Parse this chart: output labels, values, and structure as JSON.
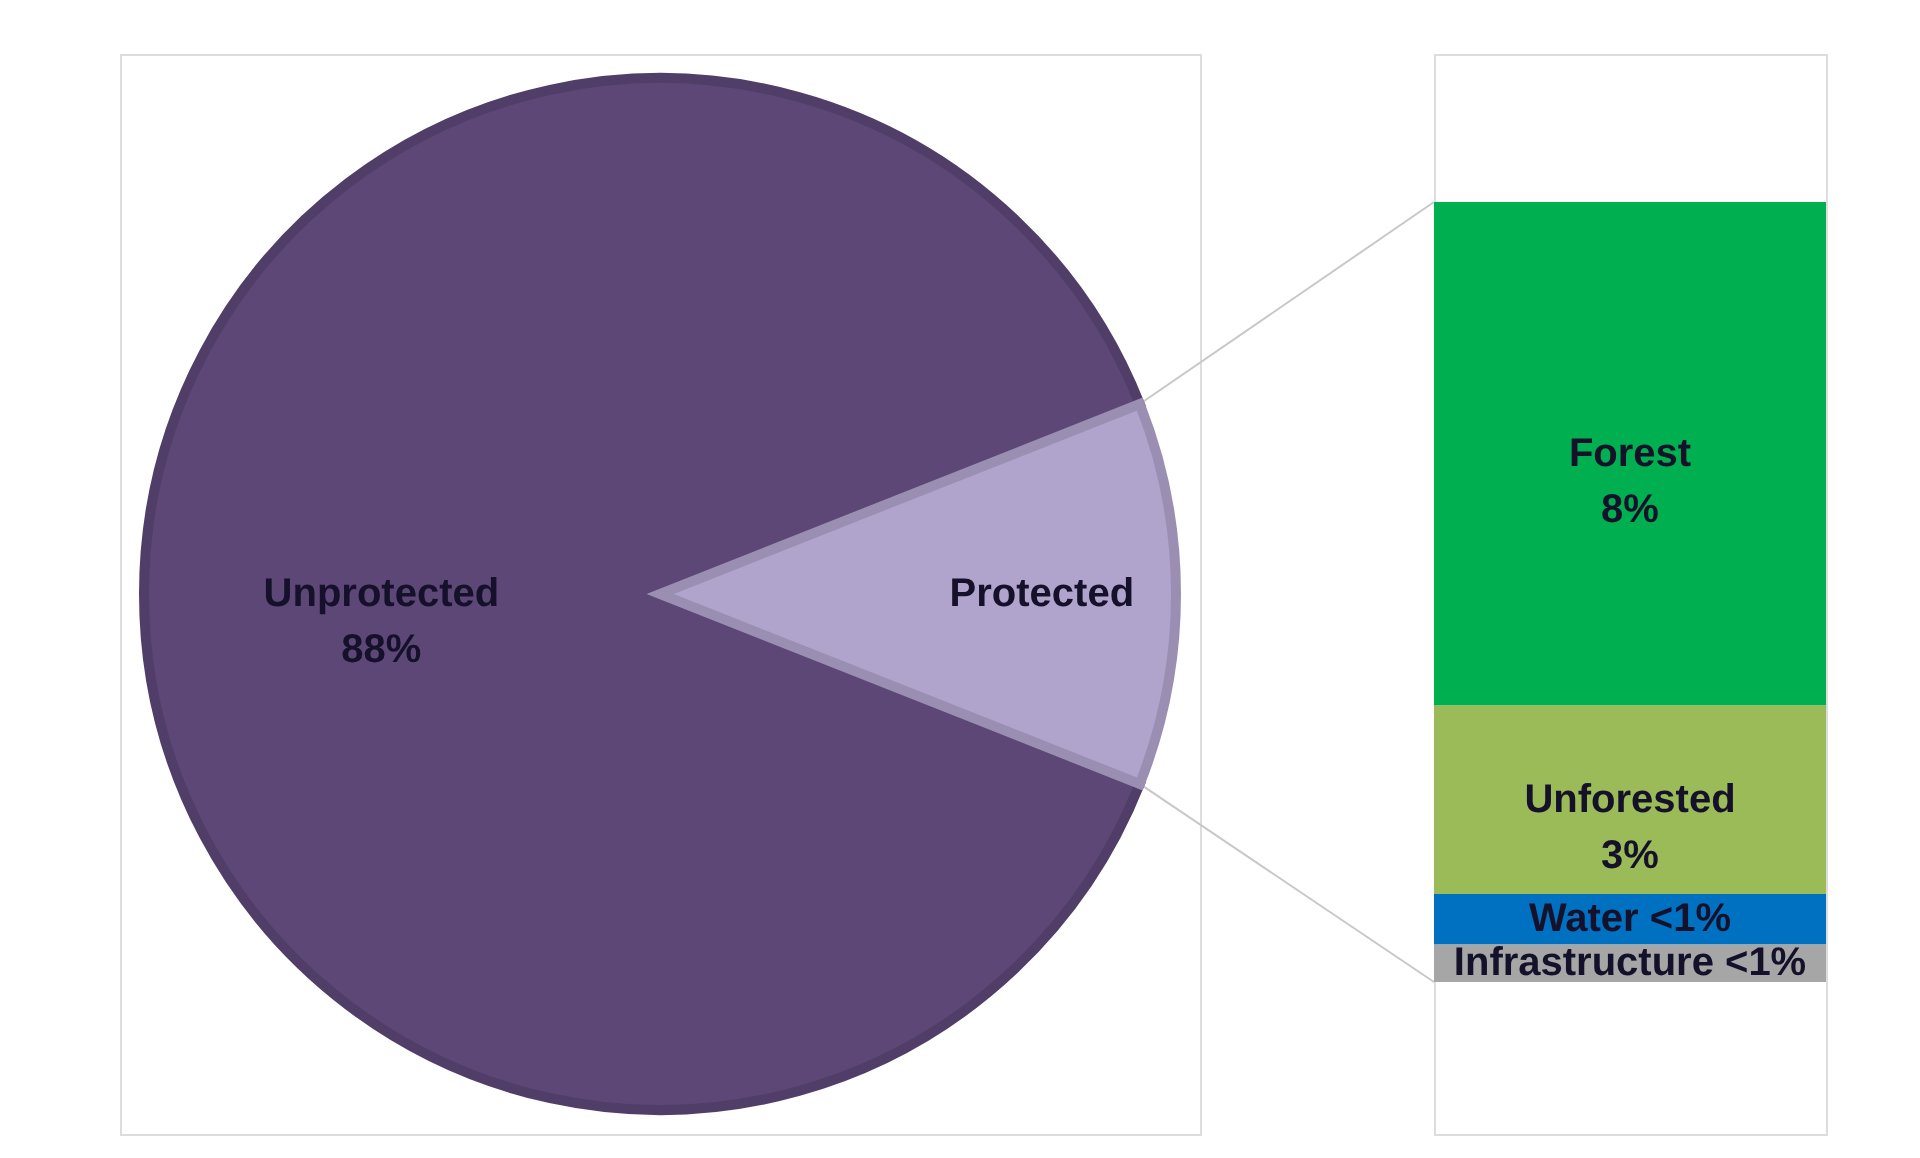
{
  "chart_data": [
    {
      "type": "pie",
      "categories": [
        "Unprotected",
        "Protected"
      ],
      "values": [
        88,
        12
      ],
      "colors": [
        "#5d4777",
        "#b0a3cc"
      ],
      "value_labels": [
        "88%",
        null
      ]
    },
    {
      "type": "bar",
      "stacked": true,
      "categories": [
        null
      ],
      "series": [
        {
          "name": "Infrastructure",
          "color": "#a6a6a6",
          "values": [
            0.6
          ],
          "value_labels": [
            "<1%"
          ]
        },
        {
          "name": "Water",
          "color": "#0070c0",
          "values": [
            0.8
          ],
          "value_labels": [
            "<1%"
          ]
        },
        {
          "name": "Unforested",
          "color": "#9bbb59",
          "values": [
            3
          ],
          "value_labels": [
            "3%"
          ]
        },
        {
          "name": "Forest",
          "color": "#00b050",
          "values": [
            8
          ],
          "value_labels": [
            "8%"
          ]
        }
      ]
    }
  ]
}
